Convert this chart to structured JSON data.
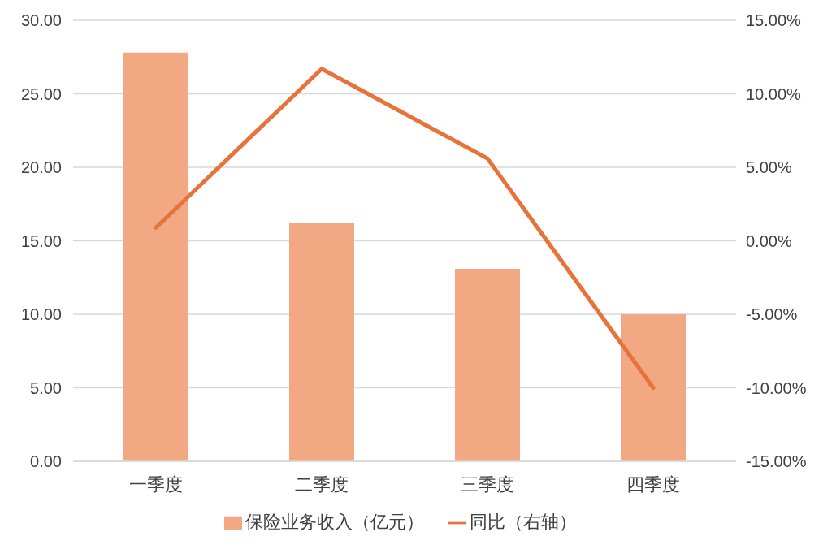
{
  "chart_data": {
    "type": "bar",
    "categories": [
      "一季度",
      "二季度",
      "三季度",
      "四季度"
    ],
    "series": [
      {
        "name": "保险业务收入（亿元）",
        "color": "#f2a983",
        "values": [
          27.8,
          16.2,
          13.1,
          10.0
        ]
      },
      {
        "name": "同比（右轴）",
        "type": "line",
        "color": "#e8733a",
        "axis": "y2",
        "marker": "none",
        "values": [
          0.9,
          11.7,
          5.6,
          -10.0
        ]
      }
    ],
    "ylim": [
      0,
      30
    ],
    "yticks": [
      {
        "value": 0,
        "label": "0.00"
      },
      {
        "value": 5,
        "label": "5.00"
      },
      {
        "value": 10,
        "label": "10.00"
      },
      {
        "value": 15,
        "label": "15.00"
      },
      {
        "value": 20,
        "label": "20.00"
      },
      {
        "value": 25,
        "label": "25.00"
      },
      {
        "value": 30,
        "label": "30.00"
      }
    ],
    "y2lim": [
      -15,
      15
    ],
    "y2ticks": [
      {
        "value": -15,
        "label": "-15.00%"
      },
      {
        "value": -10,
        "label": "-10.00%"
      },
      {
        "value": -5,
        "label": "-5.00%"
      },
      {
        "value": 0,
        "label": "0.00%"
      },
      {
        "value": 5,
        "label": "5.00%"
      },
      {
        "value": 10,
        "label": "10.00%"
      },
      {
        "value": 15,
        "label": "15.00%"
      }
    ],
    "grid": "y",
    "legend": "bottom"
  }
}
